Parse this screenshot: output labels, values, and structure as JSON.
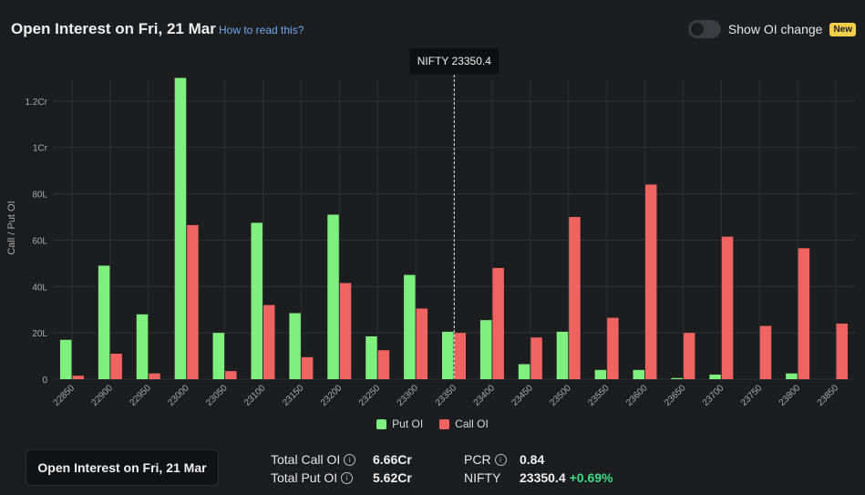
{
  "header": {
    "title": "Open Interest on Fri, 21 Mar",
    "help_link": "How to read this?"
  },
  "toggle": {
    "label": "Show OI change",
    "badge": "New",
    "on": false
  },
  "footer": {
    "button_label": "Open Interest on Fri, 21 Mar",
    "total_call_label": "Total Call OI",
    "total_call_value": "6.66Cr",
    "total_put_label": "Total Put OI",
    "total_put_value": "5.62Cr",
    "pcr_label": "PCR",
    "pcr_value": "0.84",
    "nifty_label": "NIFTY",
    "nifty_value": "23350.4",
    "nifty_change": "+0.69%"
  },
  "colors": {
    "put": "#7ef07e",
    "call": "#ef6461",
    "positive": "#3ddc84",
    "accent_link": "#6fa8ee"
  },
  "chart_data": {
    "type": "bar",
    "ylabel": "Call / Put OI",
    "categories": [
      "22850",
      "22900",
      "22950",
      "23000",
      "23050",
      "23100",
      "23150",
      "23200",
      "23250",
      "23300",
      "23350",
      "23400",
      "23450",
      "23500",
      "23550",
      "23600",
      "23650",
      "23700",
      "23750",
      "23800",
      "23850"
    ],
    "series": [
      {
        "name": "Put OI",
        "values": [
          1700000,
          4900000,
          2800000,
          13000000,
          2000000,
          6750000,
          2850000,
          7100000,
          1850000,
          4500000,
          2050000,
          2550000,
          650000,
          2050000,
          400000,
          400000,
          50000,
          200000,
          0,
          250000,
          0
        ]
      },
      {
        "name": "Call OI",
        "values": [
          150000,
          1100000,
          250000,
          6650000,
          350000,
          3200000,
          950000,
          4150000,
          1250000,
          3050000,
          2000000,
          4800000,
          1800000,
          7000000,
          2650000,
          8400000,
          2000000,
          6150000,
          2300000,
          5650000,
          2400000
        ]
      }
    ],
    "yticks": [
      "0",
      "20L",
      "40L",
      "60L",
      "80L",
      "1Cr",
      "1.2Cr"
    ],
    "ylim": [
      0,
      12900000
    ],
    "marker": {
      "label": "NIFTY 23350.4",
      "x": 23350.4
    },
    "grid": true,
    "legend": "bottom-center"
  }
}
